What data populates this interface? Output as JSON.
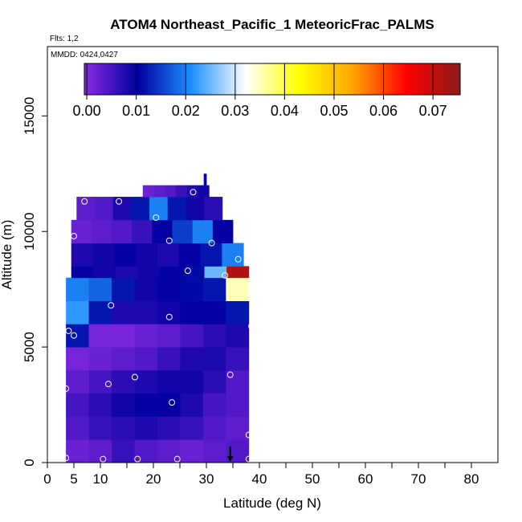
{
  "chart_data": {
    "type": "heatmap",
    "title": "ATOM4 Northeast_Pacific_1 MeteoricFrac_PALMS",
    "flights_note": "Flts: 1,2",
    "date_note": "MMDD: 0424,0427",
    "xlabel": "Latitude (deg N)",
    "ylabel": "Altitude (m)",
    "xlim": [
      0,
      85
    ],
    "ylim": [
      0,
      18000
    ],
    "x_ticks": [
      0,
      5,
      10,
      20,
      30,
      40,
      50,
      60,
      70,
      80
    ],
    "y_ticks": [
      0,
      5000,
      10000,
      15000
    ],
    "colorbar": {
      "min": -0.0005,
      "max": 0.0755,
      "tick_values": [
        0.0,
        0.01,
        0.02,
        0.03,
        0.04,
        0.05,
        0.06,
        0.07
      ],
      "tick_labels": [
        "0.00",
        "0.01",
        "0.02",
        "0.03",
        "0.04",
        "0.05",
        "0.06",
        "0.07"
      ],
      "colors": [
        "#8a2be2",
        "#0000a0",
        "#1e90ff",
        "#ffffff",
        "#ffff00",
        "#ffa500",
        "#ff0000",
        "#8b1a1a"
      ]
    },
    "bins": [
      {
        "alt": [
          0,
          1000
        ],
        "lat": [
          3.5,
          38
        ],
        "values": [
          0.002,
          0.003,
          0.006,
          0.004,
          0.003,
          0.002,
          0.003,
          0.004
        ]
      },
      {
        "alt": [
          1000,
          2000
        ],
        "lat": [
          3.5,
          38
        ],
        "values": [
          0.004,
          0.006,
          0.007,
          0.008,
          0.007,
          0.006,
          0.004,
          0.003
        ]
      },
      {
        "alt": [
          2000,
          3000
        ],
        "lat": [
          3.5,
          38
        ],
        "values": [
          0.005,
          0.007,
          0.009,
          0.01,
          0.01,
          0.008,
          0.005,
          0.004
        ]
      },
      {
        "alt": [
          3000,
          4000
        ],
        "lat": [
          3.5,
          38
        ],
        "values": [
          0.003,
          0.005,
          0.007,
          0.008,
          0.009,
          0.009,
          0.007,
          0.004
        ]
      },
      {
        "alt": [
          4000,
          5000
        ],
        "lat": [
          3.5,
          38
        ],
        "values": [
          0.001,
          0.002,
          0.003,
          0.004,
          0.006,
          0.008,
          0.008,
          0.006
        ]
      },
      {
        "alt": [
          5000,
          6000
        ],
        "lat": [
          3.5,
          38
        ],
        "values": [
          0.012,
          0.001,
          0.001,
          0.002,
          0.003,
          0.005,
          0.007,
          0.008
        ]
      },
      {
        "alt": [
          6000,
          7000
        ],
        "lat": [
          3.5,
          38
        ],
        "values": [
          0.022,
          0.012,
          0.008,
          0.008,
          0.009,
          0.01,
          0.01,
          0.012
        ]
      },
      {
        "alt": [
          7000,
          8000
        ],
        "lat": [
          3.5,
          38
        ],
        "values": [
          0.02,
          0.018,
          0.012,
          0.009,
          0.01,
          0.011,
          0.012,
          0.035
        ]
      },
      {
        "alt": [
          8000,
          8500
        ],
        "lat": [
          4.5,
          38
        ],
        "values": [
          0.01,
          0.009,
          0.008,
          0.009,
          0.01,
          0.011,
          0.025,
          0.072
        ]
      },
      {
        "alt": [
          8500,
          9500
        ],
        "lat": [
          4.5,
          37
        ],
        "values": [
          0.008,
          0.009,
          0.01,
          0.009,
          0.008,
          0.01,
          0.012,
          0.02
        ]
      },
      {
        "alt": [
          9500,
          10500
        ],
        "lat": [
          4.5,
          35
        ],
        "values": [
          0.002,
          0.003,
          0.004,
          0.006,
          0.01,
          0.015,
          0.02,
          0.01
        ]
      },
      {
        "alt": [
          10500,
          11500
        ],
        "lat": [
          5.5,
          33
        ],
        "values": [
          0.003,
          0.004,
          0.008,
          0.012,
          0.02,
          0.012,
          0.009,
          0.007
        ]
      },
      {
        "alt": [
          11500,
          12000
        ],
        "lat": [
          18,
          30.5
        ],
        "values": [
          0.002,
          0.003,
          0.004,
          0.006,
          0.008,
          0.009
        ]
      },
      {
        "alt": [
          12000,
          12500
        ],
        "lat": [
          29.5,
          30
        ],
        "values": [
          0.01
        ]
      }
    ],
    "samples": [
      {
        "lat": 7,
        "alt": 11300
      },
      {
        "lat": 13.5,
        "alt": 11300
      },
      {
        "lat": 27.5,
        "alt": 11700
      },
      {
        "lat": 20.5,
        "alt": 10600
      },
      {
        "lat": 5,
        "alt": 9800
      },
      {
        "lat": 23,
        "alt": 9600
      },
      {
        "lat": 31,
        "alt": 9500
      },
      {
        "lat": 36,
        "alt": 8800
      },
      {
        "lat": 26.5,
        "alt": 8300
      },
      {
        "lat": 33.5,
        "alt": 8100
      },
      {
        "lat": 12,
        "alt": 6800
      },
      {
        "lat": 23,
        "alt": 6300
      },
      {
        "lat": 38.5,
        "alt": 5900
      },
      {
        "lat": 4,
        "alt": 5700
      },
      {
        "lat": 5,
        "alt": 5500
      },
      {
        "lat": 34.5,
        "alt": 3800
      },
      {
        "lat": 16.5,
        "alt": 3700
      },
      {
        "lat": 11.5,
        "alt": 3400
      },
      {
        "lat": 3.5,
        "alt": 3200
      },
      {
        "lat": 23.5,
        "alt": 2600
      },
      {
        "lat": 38,
        "alt": 1200
      },
      {
        "lat": 3.5,
        "alt": 200
      },
      {
        "lat": 10.5,
        "alt": 150
      },
      {
        "lat": 17,
        "alt": 150
      },
      {
        "lat": 24.5,
        "alt": 150
      },
      {
        "lat": 38,
        "alt": 150
      }
    ],
    "arrow_marker": {
      "lat": 34.5,
      "alt": 0
    }
  }
}
